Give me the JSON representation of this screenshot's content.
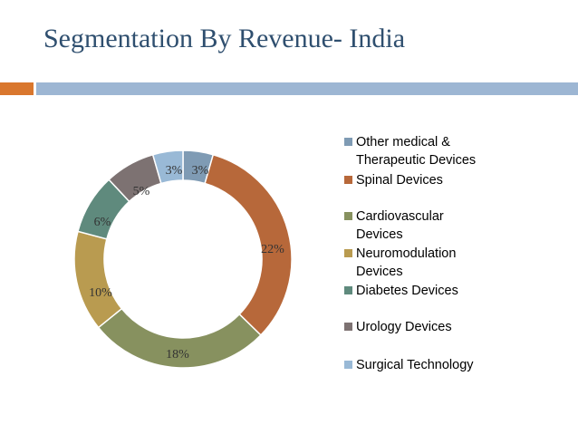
{
  "slide": {
    "title": "Segmentation By Revenue- India"
  },
  "colors": {
    "title": "#2f4f6f",
    "accent_orange": "#d9772e",
    "accent_blue": "#9db6d3"
  },
  "chart_data": {
    "type": "donut",
    "title": "",
    "legend_position": "right",
    "categories": [
      "Other medical & Therapeutic Devices",
      "Spinal Devices",
      "Cardiovascular Devices",
      "Neuromodulation Devices",
      "Diabetes Devices",
      "Urology Devices",
      "Surgical Technology"
    ],
    "legend_lines": [
      [
        "Other medical &",
        "Therapeutic Devices"
      ],
      [
        "Spinal Devices"
      ],
      [
        "Cardiovascular",
        "Devices"
      ],
      [
        "Neuromodulation",
        "Devices"
      ],
      [
        "Diabetes Devices"
      ],
      [
        "Urology Devices"
      ],
      [
        "Surgical Technology"
      ]
    ],
    "values": [
      3,
      22,
      18,
      10,
      6,
      5,
      3
    ],
    "labels": [
      "3%",
      "22%",
      "18%",
      "10%",
      "6%",
      "5%",
      "3%"
    ],
    "colors": [
      "#7f9bb4",
      "#b7683a",
      "#87915f",
      "#b99b50",
      "#5f8a7d",
      "#7d7272",
      "#99b9d6"
    ]
  }
}
